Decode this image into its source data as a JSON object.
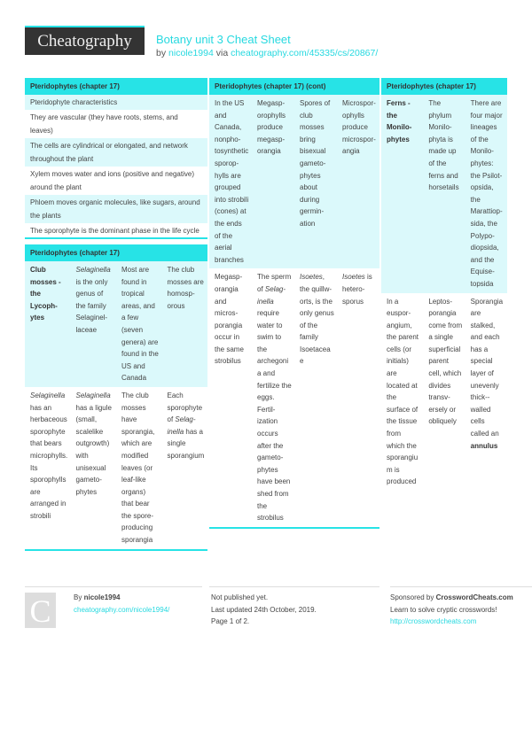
{
  "header": {
    "logo": "Cheatography",
    "title": "Botany unit 3 Cheat Sheet",
    "by": "by",
    "author": "nicole1994",
    "via": "via",
    "url": "cheatography.com/45335/cs/20867/"
  },
  "colors": {
    "accent": "#27e3e6",
    "row_alt": "#dbf9fb",
    "logo_bg": "#333333"
  },
  "box1": {
    "title": "Pteridophytes (chapter 17)",
    "rows": [
      "Pteridophyte characteristics",
      "They are vascular (they have roots, stems, and leaves)",
      "The cells are cylindrical or elongated, and network throughout the plant",
      "Xylem moves water and ions (positive and negative) around the plant",
      "Phloem moves organic molecules, like sugars, around the plants",
      "The sporophyte is the dominant phase in the life cycle"
    ]
  },
  "box2": {
    "title": "Pteridophytes (chapter 17)",
    "rows": [
      [
        [
          {
            "t": "Club mosses - the Lycoph­ytes",
            "b": true
          }
        ],
        [
          {
            "t": "Selag­inella",
            "i": true
          },
          {
            "t": " is the only genus of the family Selaginel­laceae"
          }
        ],
        [
          {
            "t": "Most are found in tropical areas, and a few (seven genera) are found in the US and Canada"
          }
        ],
        [
          {
            "t": "The club mosses are homosp­orous"
          }
        ]
      ],
      [
        [
          {
            "t": "Selaginella",
            "i": true
          },
          {
            "t": " has an herbaceous sporophyte that bears microp­hylls. Its sporophylls are arranged in strobili"
          }
        ],
        [
          {
            "t": "Selag­inella",
            "i": true
          },
          {
            "t": " has a ligule (small, scalelike outgrowth) with unisexual gameto­phytes"
          }
        ],
        [
          {
            "t": "The club mosses have sporangia, which are modified leaves (or leaf-like organs) that bear the spore-pro­ducing sporangia"
          }
        ],
        [
          {
            "t": "Each sporophyte of "
          },
          {
            "t": "Selag­inella",
            "i": true
          },
          {
            "t": " has a single sporangium"
          }
        ]
      ]
    ]
  },
  "box3": {
    "title": "Pteridophytes (chapter 17) (cont)",
    "rows": [
      [
        [
          {
            "t": "In the US and Canada, nonpho­tosynt­hetic sporop­hylls are grouped into strobili (cones) at the ends of the aerial branches"
          }
        ],
        [
          {
            "t": "Megasp­orophylls produce megasp­orangia"
          }
        ],
        [
          {
            "t": "Spores of club mosses bring bisexual gameto­phytes about during germin­ation"
          }
        ],
        [
          {
            "t": "Micros­por­ophylls produce micros­por­angia"
          }
        ]
      ],
      [
        [
          {
            "t": "Megasp­orangia and micros­porangia occur in the same strobilus"
          }
        ],
        [
          {
            "t": "The sperm of "
          },
          {
            "t": "Selag­inella",
            "i": true
          },
          {
            "t": " require water to swim to the archegonia and fertilize the eggs. Fertil­ization occurs after the gameto­phytes have been shed from the strobilus"
          }
        ],
        [
          {
            "t": "Isoetes",
            "i": true
          },
          {
            "t": ", the quillw­orts, is the only genus of the family Isoetaceae"
          }
        ],
        [
          {
            "t": "Isoetes",
            "i": true
          },
          {
            "t": " is hetero­sporus"
          }
        ]
      ]
    ]
  },
  "box4": {
    "title": "Pteridophytes (chapter 17)",
    "rows": [
      [
        [
          {
            "t": "Ferns - the Monilo­phytes",
            "b": true
          }
        ],
        [
          {
            "t": "The phylum Monilo­phyta is made up of the ferns and horsetails"
          }
        ],
        [
          {
            "t": "There are four major lineages of the Monilo­phytes: the Psilot­opsida, the Marattiop­sida, the Polypo­diopsida, and the Equise­topsida"
          }
        ]
      ],
      [
        [
          {
            "t": "In a euspor­angium, the parent cells (or initials) are located at the surface of the tissue from which the sporangium is produced"
          }
        ],
        [
          {
            "t": "Leptos­porangia come from a single superf­icial parent cell, which divides transv­ersely or obliquely"
          }
        ],
        [
          {
            "t": "Sporangia are stalked, and each has a special layer of unevenly thick-­walled cells called an "
          },
          {
            "t": "annulus",
            "b": true
          }
        ]
      ]
    ]
  },
  "footer": {
    "avatar_letter": "C",
    "by": "By",
    "author": "nicole1994",
    "author_url": "cheatography.com/nicole1994/",
    "status": "Not published yet.",
    "updated": "Last updated 24th October, 2019.",
    "page": "Page 1 of 2.",
    "sponsor_prefix": "Sponsored by",
    "sponsor": "CrosswordCheats.com",
    "sponsor_tagline": "Learn to solve cryptic crosswords!",
    "sponsor_url": "http://crosswordcheats.com"
  }
}
